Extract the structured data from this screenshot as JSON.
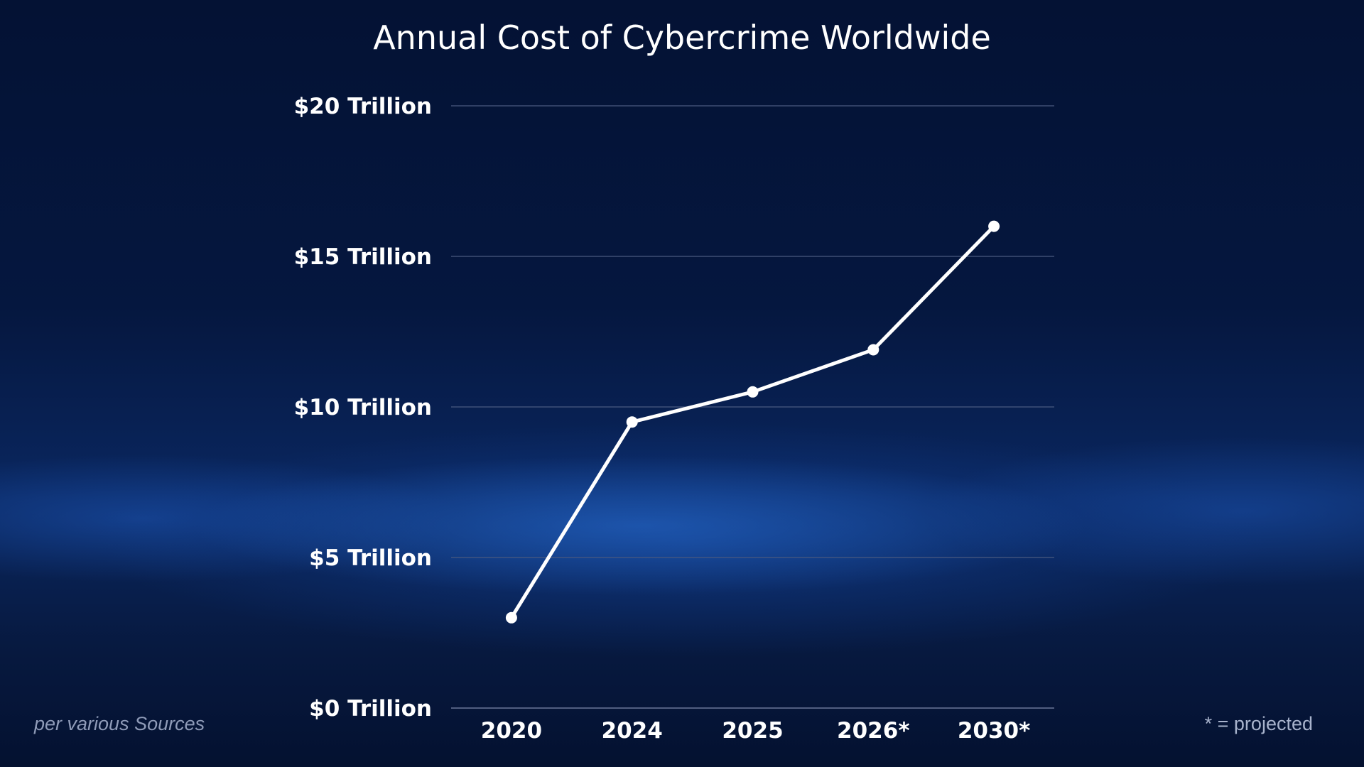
{
  "chart_data": {
    "type": "line",
    "title": "Annual Cost of Cybercrime Worldwide",
    "categories": [
      "2020",
      "2024",
      "2025",
      "2026*",
      "2030*"
    ],
    "values": [
      3.0,
      9.5,
      10.5,
      11.9,
      16.0
    ],
    "y_ticks": [
      0,
      5,
      10,
      15,
      20
    ],
    "y_tick_labels": [
      "$0 Trillion",
      "$5 Trillion",
      "$10 Trillion",
      "$15 Trillion",
      "$20 Trillion"
    ],
    "ylim": [
      0,
      20
    ],
    "grid": true,
    "xlabel": "",
    "ylabel": "",
    "line_color": "#ffffff",
    "grid_color": "#4a5a80"
  },
  "footer": {
    "source": "per various Sources",
    "note": "* = projected"
  },
  "colors": {
    "background": "#05173f",
    "text": "#ffffff"
  }
}
